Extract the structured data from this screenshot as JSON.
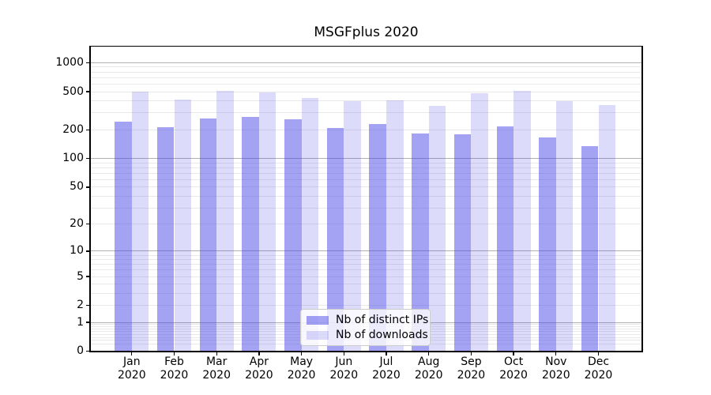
{
  "chart_data": {
    "type": "bar",
    "title": "MSGFplus 2020",
    "categories": [
      "Jan 2020",
      "Feb 2020",
      "Mar 2020",
      "Apr 2020",
      "May 2020",
      "Jun 2020",
      "Jul 2020",
      "Aug 2020",
      "Sep 2020",
      "Oct 2020",
      "Nov 2020",
      "Dec 2020"
    ],
    "series": [
      {
        "name": "Nb of distinct IPs",
        "color": "rgba(68,66,230,0.49)",
        "values": [
          245,
          215,
          261,
          273,
          257,
          211,
          230,
          184,
          180,
          219,
          167,
          136
        ]
      },
      {
        "name": "Nb of downloads",
        "color": "rgba(68,66,230,0.19)",
        "values": [
          503,
          417,
          511,
          491,
          429,
          396,
          410,
          355,
          478,
          510,
          401,
          360
        ]
      }
    ],
    "yscale": "symlog-log1p",
    "ylim": [
      0,
      1500
    ],
    "ytick_values": [
      0,
      1,
      2,
      5,
      10,
      20,
      50,
      100,
      200,
      500,
      1000
    ],
    "grid": {
      "major_at": [
        1,
        10,
        100,
        1000
      ],
      "major_color": "#b0b0b0",
      "minor_color": "#e9e9e9"
    },
    "legend_position": "lower center inside plot",
    "axis_color": "#000000",
    "background_color": "#ffffff"
  }
}
